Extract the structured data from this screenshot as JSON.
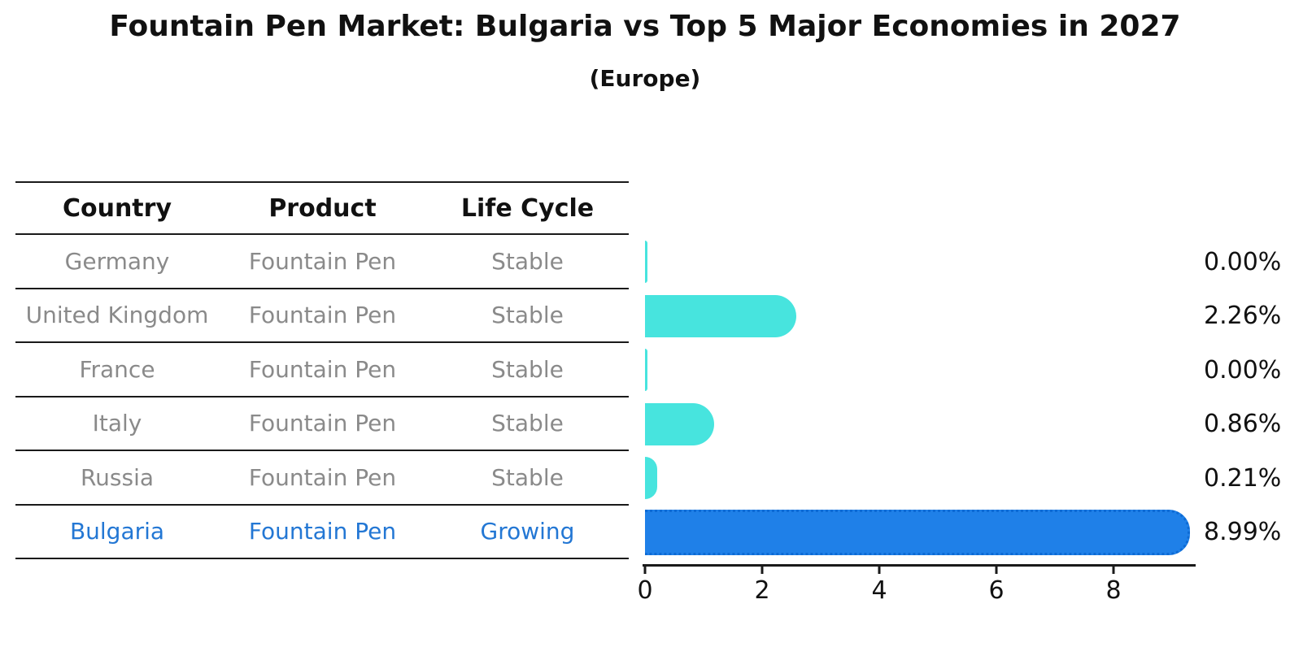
{
  "title": "Fountain Pen Market: Bulgaria vs Top 5 Major Economies in 2027",
  "subtitle": "(Europe)",
  "table": {
    "headers": [
      "Country",
      "Product",
      "Life Cycle"
    ],
    "rows": [
      {
        "country": "Germany",
        "product": "Fountain Pen",
        "life_cycle": "Stable",
        "highlighted": false
      },
      {
        "country": "United Kingdom",
        "product": "Fountain Pen",
        "life_cycle": "Stable",
        "highlighted": false
      },
      {
        "country": "France",
        "product": "Fountain Pen",
        "life_cycle": "Stable",
        "highlighted": false
      },
      {
        "country": "Italy",
        "product": "Fountain Pen",
        "life_cycle": "Stable",
        "highlighted": false
      },
      {
        "country": "Russia",
        "product": "Fountain Pen",
        "life_cycle": "Stable",
        "highlighted": false
      },
      {
        "country": "Bulgaria",
        "product": "Fountain Pen",
        "life_cycle": "Growing",
        "highlighted": true
      }
    ]
  },
  "chart_data": {
    "type": "bar",
    "orientation": "horizontal",
    "title": "Fountain Pen Market: Bulgaria vs Top 5 Major Economies in 2027",
    "subtitle": "(Europe)",
    "categories": [
      "Germany",
      "United Kingdom",
      "France",
      "Italy",
      "Russia",
      "Bulgaria"
    ],
    "values": [
      0.0,
      2.26,
      0.0,
      0.86,
      0.21,
      8.99
    ],
    "value_labels": [
      "0.00%",
      "2.26%",
      "0.00%",
      "0.86%",
      "0.21%",
      "8.99%"
    ],
    "highlight_index": 5,
    "xlabel": "",
    "ylabel": "",
    "xlim": [
      0,
      9.4
    ],
    "x_ticks": [
      0,
      2,
      4,
      6,
      8
    ],
    "x_tick_labels": [
      "0",
      "2",
      "4",
      "6",
      "8"
    ],
    "grid": false,
    "legend": "none",
    "colors": {
      "bar_default": "#47e4de",
      "bar_highlight": "#1f80e8",
      "bar_highlight_edge": "#0d6ad4",
      "text_dark": "#111111",
      "text_muted": "#8a8a8a",
      "text_highlight": "#2377d4"
    }
  }
}
